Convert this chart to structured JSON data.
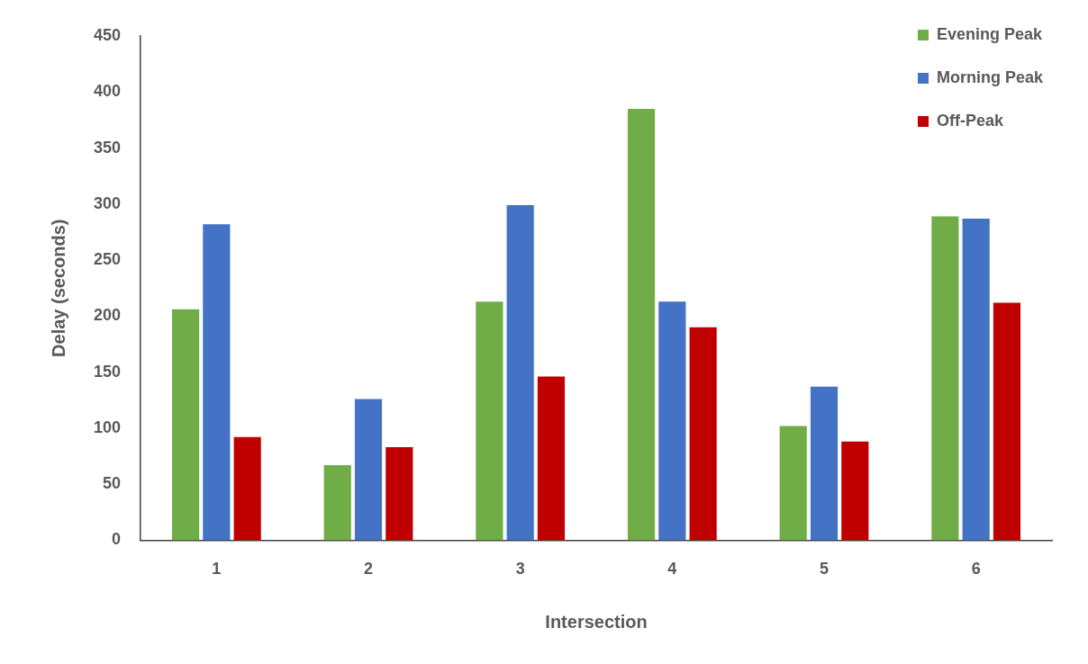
{
  "chart_data": {
    "type": "bar",
    "xlabel": "Intersection",
    "ylabel": "Delay (seconds)",
    "categories": [
      "1",
      "2",
      "3",
      "4",
      "5",
      "6"
    ],
    "series": [
      {
        "name": "Evening Peak",
        "color": "#70ad47",
        "values": [
          206,
          67,
          213,
          385,
          102,
          289
        ]
      },
      {
        "name": "Morning Peak",
        "color": "#4472c4",
        "values": [
          282,
          126,
          299,
          213,
          137,
          287
        ]
      },
      {
        "name": "Off-Peak",
        "color": "#c00000",
        "values": [
          92,
          83,
          146,
          190,
          88,
          212
        ]
      }
    ],
    "ylim": [
      0,
      450
    ],
    "yticks": [
      0,
      50,
      100,
      150,
      200,
      250,
      300,
      350,
      400,
      450
    ],
    "grid": false,
    "legend": "top right"
  }
}
